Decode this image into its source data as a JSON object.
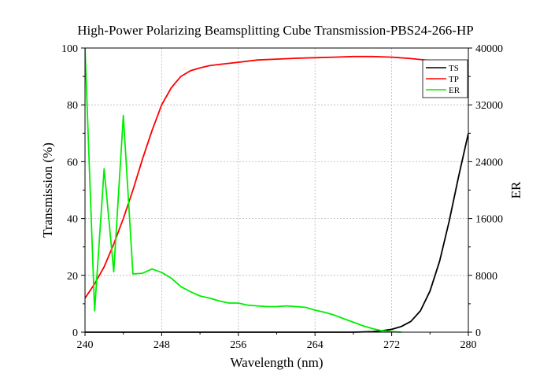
{
  "chart_data": {
    "type": "line",
    "title": "High-Power Polarizing Beamsplitting Cube Transmission-PBS24-266-HP",
    "xlabel": "Wavelength (nm)",
    "ylabel": "Transmission (%)",
    "y2label": "ER",
    "xlim": [
      240,
      280
    ],
    "ylim": [
      0,
      100
    ],
    "y2lim": [
      0,
      40000
    ],
    "xticks": [
      "240",
      "248",
      "256",
      "264",
      "272",
      "280"
    ],
    "yticks": [
      "0",
      "20",
      "40",
      "60",
      "80",
      "100"
    ],
    "y2ticks": [
      "0",
      "8000",
      "16000",
      "24000",
      "32000",
      "40000"
    ],
    "grid": true,
    "legend_position": "top-right",
    "series": [
      {
        "name": "TS",
        "axis": "left",
        "color": "#000000",
        "x": [
          240,
          244,
          248,
          252,
          256,
          260,
          264,
          268,
          270,
          271,
          272,
          273,
          274,
          275,
          276,
          277,
          278,
          279,
          280
        ],
        "y": [
          0,
          0,
          0,
          0,
          0,
          0,
          0,
          0,
          0.2,
          0.5,
          1.0,
          2.0,
          3.8,
          7.5,
          14.5,
          25,
          39,
          55,
          70
        ]
      },
      {
        "name": "TP",
        "axis": "left",
        "color": "#ff0000",
        "x": [
          240,
          241,
          242,
          243,
          244,
          245,
          246,
          247,
          248,
          249,
          250,
          251,
          252,
          253,
          254,
          256,
          258,
          260,
          262,
          264,
          266,
          268,
          270,
          272,
          274,
          276,
          278,
          280
        ],
        "y": [
          12,
          17,
          23,
          31,
          40,
          50,
          61,
          71,
          80,
          86,
          90,
          92,
          93,
          93.8,
          94.2,
          95,
          95.8,
          96.1,
          96.4,
          96.6,
          96.8,
          97,
          97,
          96.8,
          96.3,
          95.6,
          94.8,
          94
        ]
      },
      {
        "name": "ER",
        "axis": "right",
        "color": "#00ee00",
        "x": [
          240,
          241,
          242,
          243,
          244,
          245,
          246,
          247,
          248,
          249,
          250,
          251,
          252,
          253,
          254,
          255,
          256,
          257,
          258,
          259,
          260,
          261,
          262,
          263,
          264,
          265,
          266,
          267,
          268,
          269,
          270,
          271,
          272,
          273
        ],
        "y": [
          40000,
          3000,
          23000,
          8500,
          30500,
          8200,
          8300,
          8900,
          8400,
          7600,
          6400,
          5700,
          5100,
          4800,
          4400,
          4100,
          4100,
          3800,
          3700,
          3600,
          3600,
          3700,
          3600,
          3500,
          3100,
          2800,
          2400,
          1900,
          1400,
          900,
          500,
          200,
          100,
          0
        ]
      }
    ]
  }
}
